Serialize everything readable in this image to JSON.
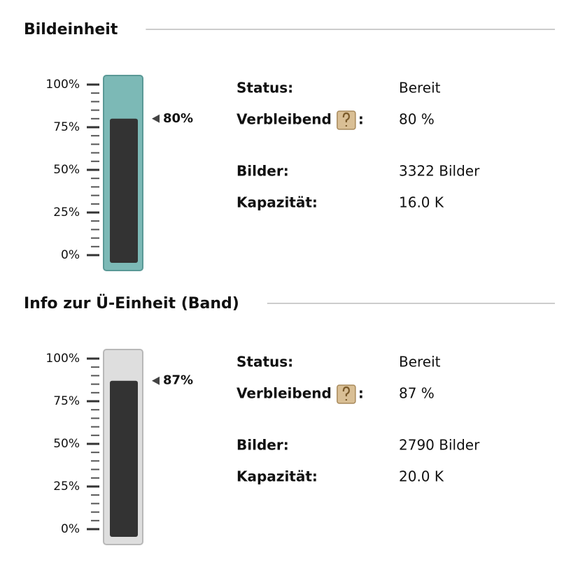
{
  "sections": [
    {
      "title": "Bildeinheit",
      "tube_color": "#7cb9b6",
      "tube_border": "#5a9996",
      "gauge": {
        "range": [
          0,
          100
        ],
        "ticks": [
          {
            "value": 0,
            "label": "0%"
          },
          {
            "value": 25,
            "label": "25%"
          },
          {
            "value": 50,
            "label": "50%"
          },
          {
            "value": 75,
            "label": "75%"
          },
          {
            "value": 100,
            "label": "100%"
          }
        ],
        "value": 80,
        "value_label": "80%"
      },
      "fields": [
        {
          "label": "Status:",
          "value": "Bereit"
        },
        {
          "label": "Verbleibend",
          "suffix": ":",
          "value": "80 %"
        },
        {
          "label": "Bilder:",
          "value": "3322 Bilder"
        },
        {
          "label": "Kapazität:",
          "value": "16.0 K"
        }
      ]
    },
    {
      "title": "Info zur Ü-Einheit (Band)",
      "tube_color": "#dedede",
      "tube_border": "#b8b8b8",
      "gauge": {
        "range": [
          0,
          100
        ],
        "ticks": [
          {
            "value": 0,
            "label": "0%"
          },
          {
            "value": 25,
            "label": "25%"
          },
          {
            "value": 50,
            "label": "50%"
          },
          {
            "value": 75,
            "label": "75%"
          },
          {
            "value": 100,
            "label": "100%"
          }
        ],
        "value": 87,
        "value_label": "87%"
      },
      "fields": [
        {
          "label": "Status:",
          "value": "Bereit"
        },
        {
          "label": "Verbleibend",
          "suffix": ":",
          "value": "87 %"
        },
        {
          "label": "Bilder:",
          "value": "2790 Bilder"
        },
        {
          "label": "Kapazität:",
          "value": "20.0 K"
        }
      ]
    }
  ]
}
